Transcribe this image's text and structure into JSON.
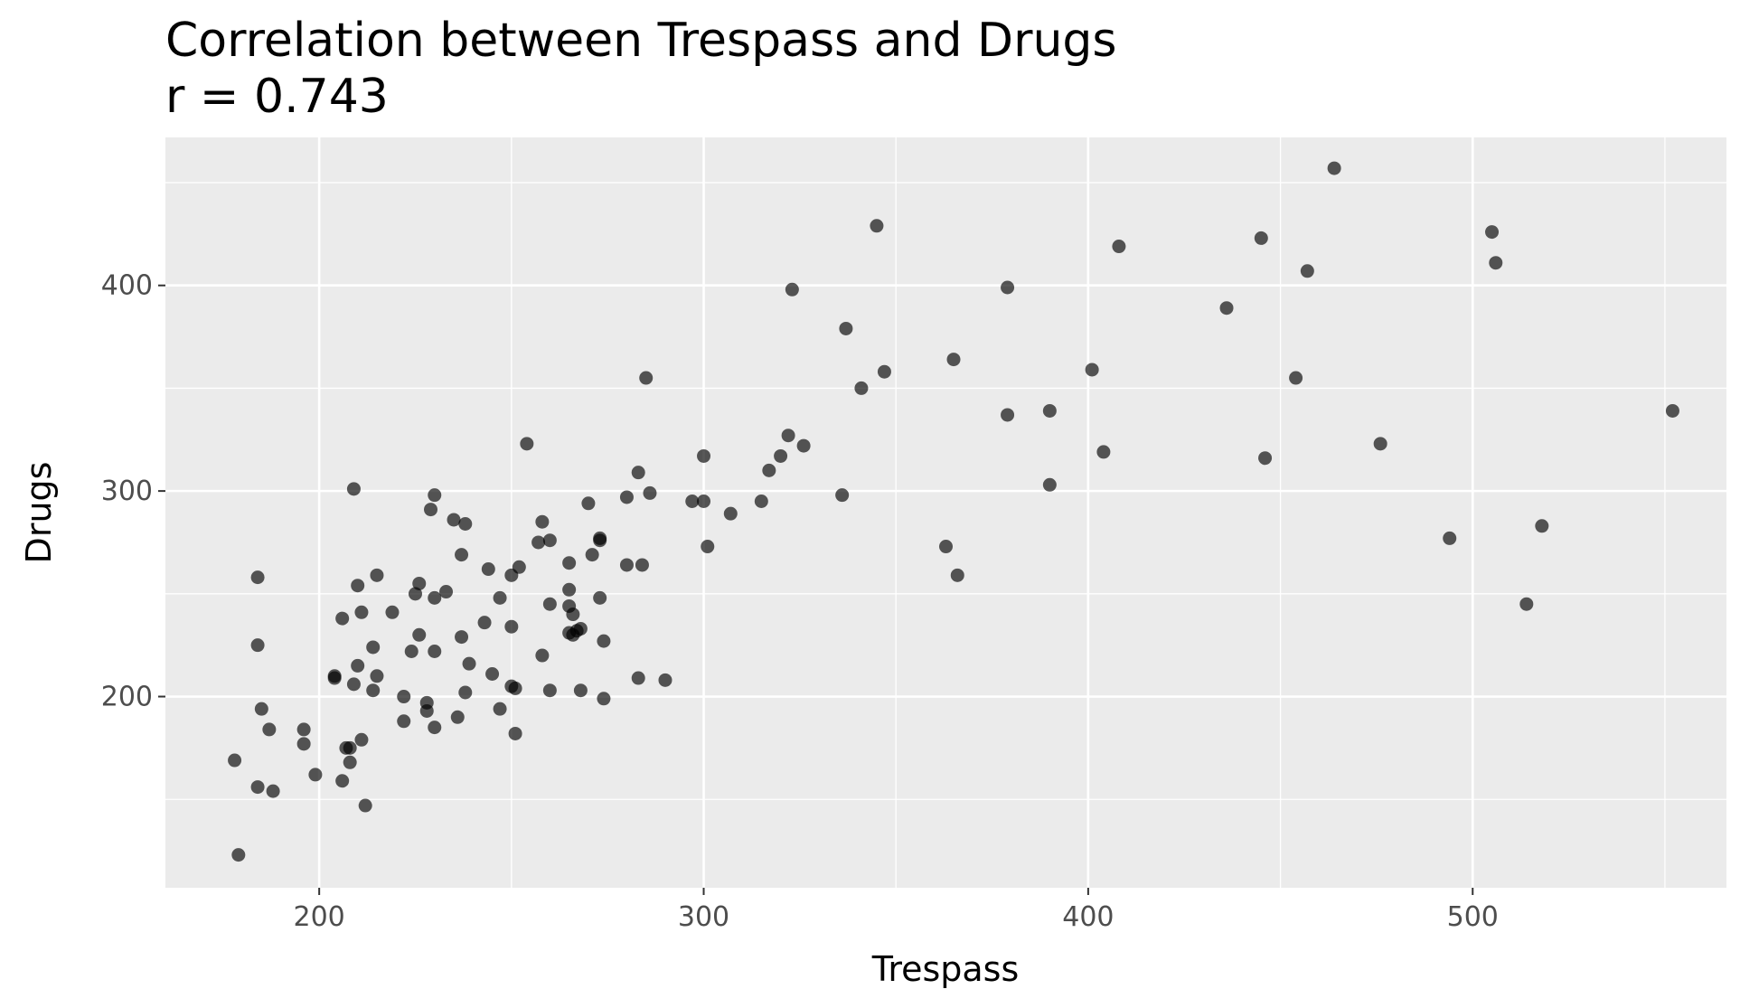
{
  "chart_data": {
    "type": "scatter",
    "title": "Correlation between Trespass and Drugs",
    "subtitle": "r = 0.743",
    "xlabel": "Trespass",
    "ylabel": "Drugs",
    "xlim": [
      160,
      566
    ],
    "ylim": [
      107,
      472
    ],
    "x_major_ticks": [
      200,
      300,
      400,
      500
    ],
    "x_minor_ticks": [
      250,
      350,
      450,
      550
    ],
    "y_major_ticks": [
      200,
      300,
      400
    ],
    "y_minor_ticks": [
      150,
      250,
      350,
      450
    ],
    "x_tick_labels": [
      "200",
      "300",
      "400",
      "500"
    ],
    "y_tick_labels": [
      "200",
      "300",
      "400"
    ],
    "grid": true,
    "panel_background": "#ebebeb",
    "grid_color": "#ffffff",
    "point_color": "#000000",
    "point_opacity": 0.65,
    "points": [
      {
        "x": 179,
        "y": 123
      },
      {
        "x": 178,
        "y": 169
      },
      {
        "x": 184,
        "y": 156
      },
      {
        "x": 188,
        "y": 154
      },
      {
        "x": 185,
        "y": 194
      },
      {
        "x": 187,
        "y": 184
      },
      {
        "x": 184,
        "y": 225
      },
      {
        "x": 184,
        "y": 258
      },
      {
        "x": 196,
        "y": 184
      },
      {
        "x": 196,
        "y": 177
      },
      {
        "x": 199,
        "y": 162
      },
      {
        "x": 204,
        "y": 210
      },
      {
        "x": 204,
        "y": 209
      },
      {
        "x": 206,
        "y": 159
      },
      {
        "x": 207,
        "y": 175
      },
      {
        "x": 208,
        "y": 168
      },
      {
        "x": 208,
        "y": 175
      },
      {
        "x": 209,
        "y": 206
      },
      {
        "x": 210,
        "y": 215
      },
      {
        "x": 211,
        "y": 179
      },
      {
        "x": 212,
        "y": 147
      },
      {
        "x": 206,
        "y": 238
      },
      {
        "x": 210,
        "y": 254
      },
      {
        "x": 211,
        "y": 241
      },
      {
        "x": 209,
        "y": 301
      },
      {
        "x": 214,
        "y": 203
      },
      {
        "x": 215,
        "y": 210
      },
      {
        "x": 214,
        "y": 224
      },
      {
        "x": 215,
        "y": 259
      },
      {
        "x": 219,
        "y": 241
      },
      {
        "x": 222,
        "y": 188
      },
      {
        "x": 222,
        "y": 200
      },
      {
        "x": 224,
        "y": 222
      },
      {
        "x": 225,
        "y": 250
      },
      {
        "x": 226,
        "y": 230
      },
      {
        "x": 226,
        "y": 255
      },
      {
        "x": 228,
        "y": 193
      },
      {
        "x": 228,
        "y": 197
      },
      {
        "x": 229,
        "y": 291
      },
      {
        "x": 230,
        "y": 298
      },
      {
        "x": 230,
        "y": 185
      },
      {
        "x": 230,
        "y": 222
      },
      {
        "x": 230,
        "y": 248
      },
      {
        "x": 233,
        "y": 251
      },
      {
        "x": 235,
        "y": 286
      },
      {
        "x": 236,
        "y": 190
      },
      {
        "x": 237,
        "y": 229
      },
      {
        "x": 237,
        "y": 269
      },
      {
        "x": 238,
        "y": 284
      },
      {
        "x": 238,
        "y": 202
      },
      {
        "x": 239,
        "y": 216
      },
      {
        "x": 243,
        "y": 236
      },
      {
        "x": 244,
        "y": 262
      },
      {
        "x": 245,
        "y": 211
      },
      {
        "x": 247,
        "y": 194
      },
      {
        "x": 247,
        "y": 248
      },
      {
        "x": 250,
        "y": 205
      },
      {
        "x": 250,
        "y": 234
      },
      {
        "x": 250,
        "y": 259
      },
      {
        "x": 251,
        "y": 204
      },
      {
        "x": 251,
        "y": 182
      },
      {
        "x": 252,
        "y": 263
      },
      {
        "x": 254,
        "y": 323
      },
      {
        "x": 257,
        "y": 275
      },
      {
        "x": 258,
        "y": 285
      },
      {
        "x": 258,
        "y": 220
      },
      {
        "x": 260,
        "y": 203
      },
      {
        "x": 260,
        "y": 245
      },
      {
        "x": 260,
        "y": 276
      },
      {
        "x": 265,
        "y": 265
      },
      {
        "x": 265,
        "y": 252
      },
      {
        "x": 265,
        "y": 244
      },
      {
        "x": 266,
        "y": 240
      },
      {
        "x": 265,
        "y": 231
      },
      {
        "x": 266,
        "y": 230
      },
      {
        "x": 267,
        "y": 232
      },
      {
        "x": 268,
        "y": 233
      },
      {
        "x": 268,
        "y": 203
      },
      {
        "x": 270,
        "y": 294
      },
      {
        "x": 271,
        "y": 269
      },
      {
        "x": 273,
        "y": 276
      },
      {
        "x": 273,
        "y": 277
      },
      {
        "x": 273,
        "y": 248
      },
      {
        "x": 274,
        "y": 227
      },
      {
        "x": 274,
        "y": 199
      },
      {
        "x": 280,
        "y": 297
      },
      {
        "x": 280,
        "y": 264
      },
      {
        "x": 283,
        "y": 309
      },
      {
        "x": 283,
        "y": 209
      },
      {
        "x": 284,
        "y": 264
      },
      {
        "x": 285,
        "y": 355
      },
      {
        "x": 286,
        "y": 299
      },
      {
        "x": 290,
        "y": 208
      },
      {
        "x": 297,
        "y": 295
      },
      {
        "x": 300,
        "y": 295
      },
      {
        "x": 300,
        "y": 317
      },
      {
        "x": 301,
        "y": 273
      },
      {
        "x": 307,
        "y": 289
      },
      {
        "x": 315,
        "y": 295
      },
      {
        "x": 317,
        "y": 310
      },
      {
        "x": 320,
        "y": 317
      },
      {
        "x": 322,
        "y": 327
      },
      {
        "x": 323,
        "y": 398
      },
      {
        "x": 326,
        "y": 322
      },
      {
        "x": 336,
        "y": 298
      },
      {
        "x": 337,
        "y": 379
      },
      {
        "x": 341,
        "y": 350
      },
      {
        "x": 345,
        "y": 429
      },
      {
        "x": 347,
        "y": 358
      },
      {
        "x": 363,
        "y": 273
      },
      {
        "x": 365,
        "y": 364
      },
      {
        "x": 366,
        "y": 259
      },
      {
        "x": 379,
        "y": 337
      },
      {
        "x": 379,
        "y": 399
      },
      {
        "x": 390,
        "y": 339
      },
      {
        "x": 390,
        "y": 303
      },
      {
        "x": 401,
        "y": 359
      },
      {
        "x": 404,
        "y": 319
      },
      {
        "x": 408,
        "y": 419
      },
      {
        "x": 436,
        "y": 389
      },
      {
        "x": 445,
        "y": 423
      },
      {
        "x": 446,
        "y": 316
      },
      {
        "x": 454,
        "y": 355
      },
      {
        "x": 457,
        "y": 407
      },
      {
        "x": 464,
        "y": 457
      },
      {
        "x": 476,
        "y": 323
      },
      {
        "x": 494,
        "y": 277
      },
      {
        "x": 505,
        "y": 426
      },
      {
        "x": 506,
        "y": 411
      },
      {
        "x": 514,
        "y": 245
      },
      {
        "x": 518,
        "y": 283
      },
      {
        "x": 552,
        "y": 339
      }
    ]
  }
}
